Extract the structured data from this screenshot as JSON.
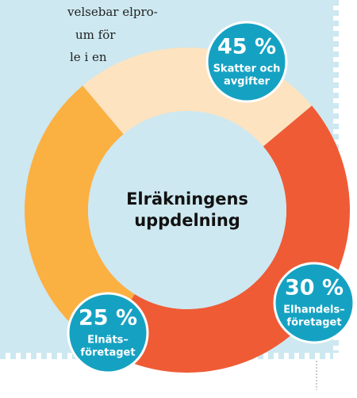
{
  "chart_data": {
    "type": "donut",
    "title": [
      "Elräkningens",
      "uppdelning"
    ],
    "annotations": [
      "velsebar elpro-",
      "um för",
      "le i en"
    ],
    "categories": [
      [
        "Skatter och",
        "avgifter"
      ],
      [
        "Elhandels–",
        "företaget"
      ],
      [
        "Elnäts–",
        "företaget"
      ]
    ],
    "values": [
      45,
      30,
      25
    ],
    "value_labels": [
      "45 %",
      "30 %",
      "25 %"
    ],
    "colors": [
      "#ef5b35",
      "#fbb042",
      "#fde3bf"
    ],
    "bubble_color": "#15a2c2"
  }
}
